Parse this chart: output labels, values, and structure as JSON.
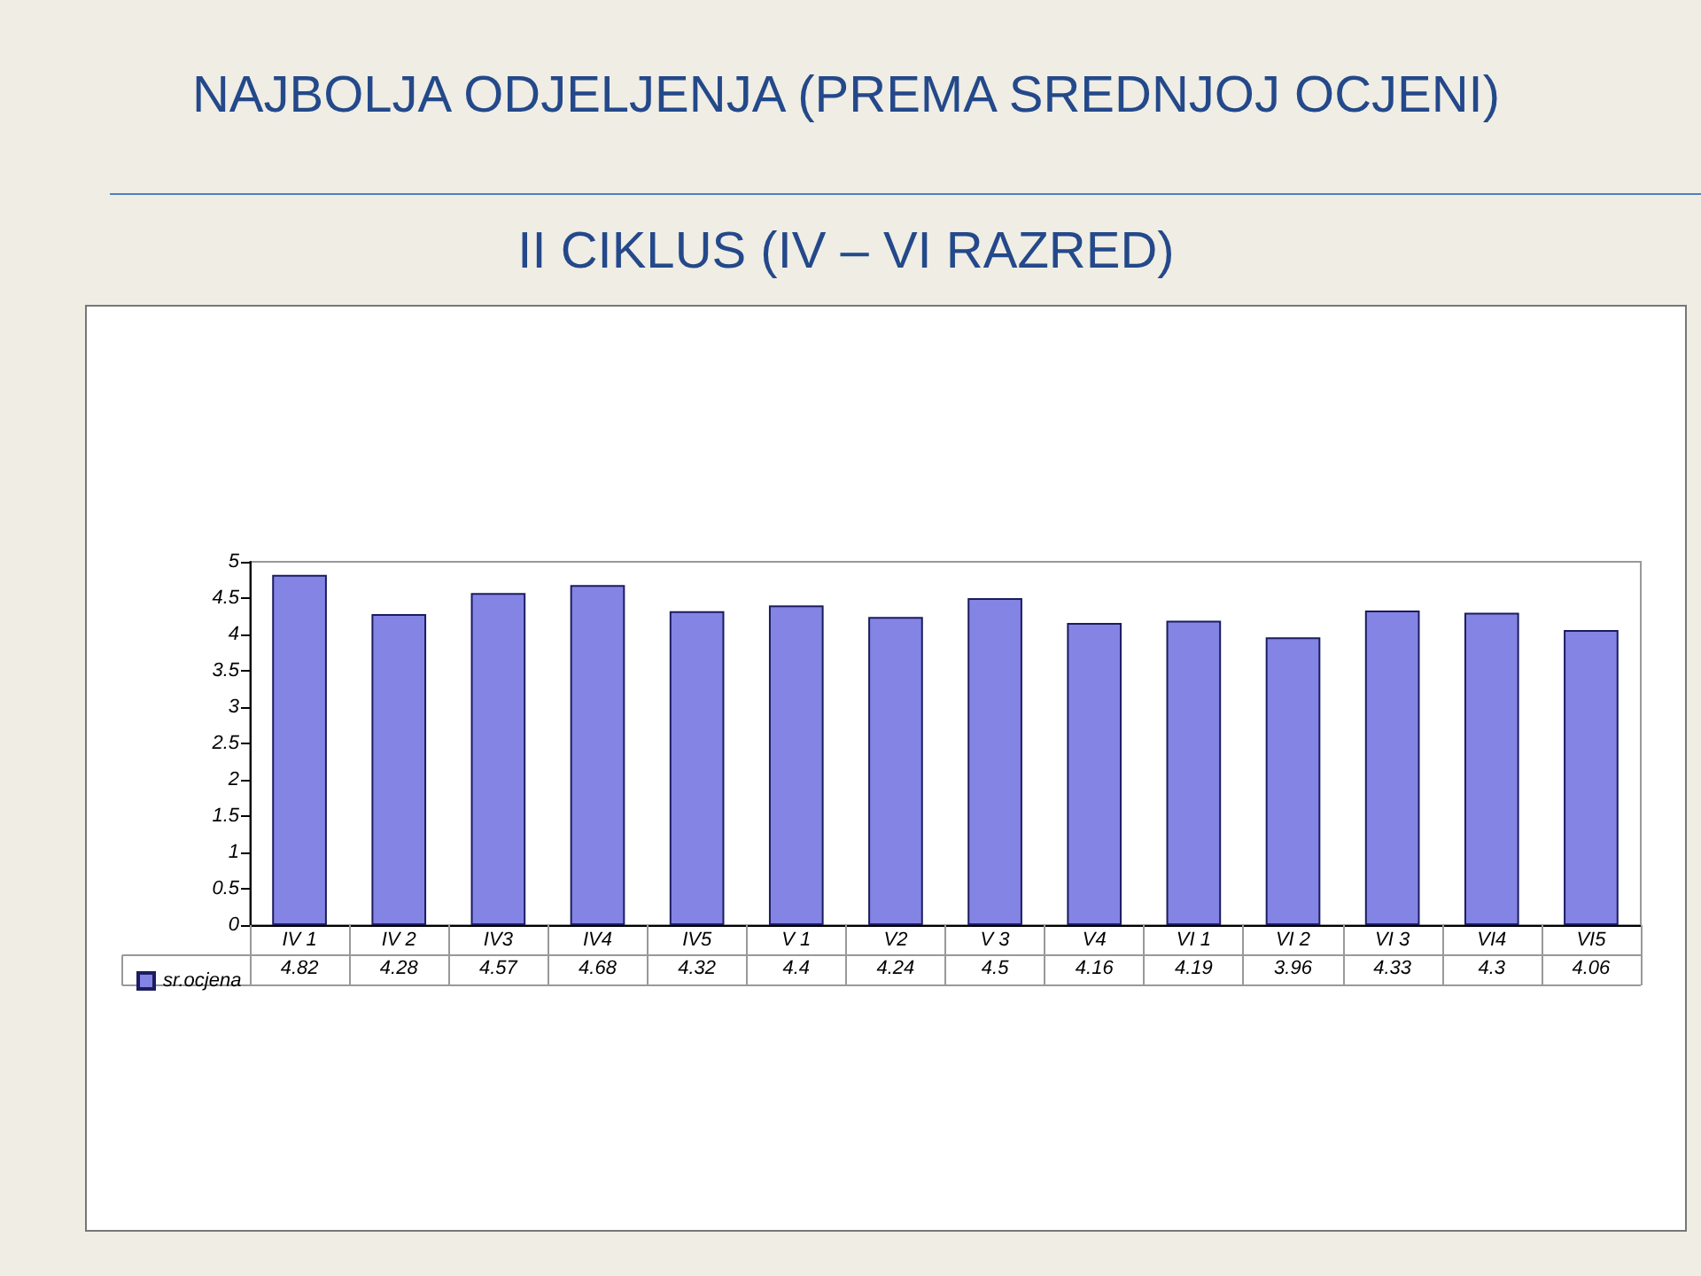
{
  "chart_data": {
    "type": "bar",
    "title": "NAJBOLJA ODJELJENJA (PREMA SREDNJOJ OCJENI)",
    "subtitle": "II CIKLUS (IV – VI RAZRED)",
    "categories": [
      "IV 1",
      "IV 2",
      "IV3",
      "IV4",
      "IV5",
      "V 1",
      "V2",
      "V 3",
      "V4",
      "VI 1",
      "VI 2",
      "VI 3",
      "VI4",
      "VI5"
    ],
    "series": [
      {
        "name": "sr.ocjena",
        "color": "#8484e4",
        "values": [
          4.82,
          4.28,
          4.57,
          4.68,
          4.32,
          4.4,
          4.24,
          4.5,
          4.16,
          4.19,
          3.96,
          4.33,
          4.3,
          4.06
        ]
      }
    ],
    "ylim": [
      0,
      5
    ],
    "yticks": [
      0,
      0.5,
      1,
      1.5,
      2,
      2.5,
      3,
      3.5,
      4,
      4.5,
      5
    ],
    "data_labels": true,
    "legend": "bottom left"
  }
}
